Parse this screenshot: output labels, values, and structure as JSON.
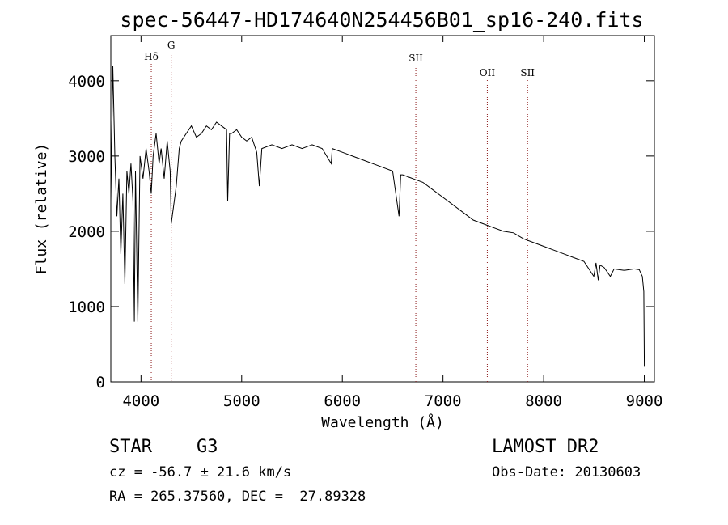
{
  "chart_data": {
    "type": "line",
    "title": "spec-56447-HD174640N254456B01_sp16-240.fits",
    "xlabel": "Wavelength (Å)",
    "ylabel": "Flux (relative)",
    "xlim": [
      3700,
      9100
    ],
    "ylim": [
      0,
      4600
    ],
    "xticks": [
      4000,
      5000,
      6000,
      7000,
      8000,
      9000
    ],
    "yticks": [
      0,
      1000,
      2000,
      3000,
      4000
    ],
    "line_color": "#000000",
    "marker_color": "#8b1a1a",
    "spectral_lines": [
      {
        "name": "Hδ",
        "wavelength": 4102
      },
      {
        "name": "G",
        "wavelength": 4300
      },
      {
        "name": "SII",
        "wavelength": 6730
      },
      {
        "name": "OII",
        "wavelength": 7440
      },
      {
        "name": "SII",
        "wavelength": 7840
      }
    ],
    "series": [
      {
        "values": [
          [
            3700,
            2400
          ],
          [
            3720,
            4200
          ],
          [
            3740,
            3000
          ],
          [
            3760,
            2200
          ],
          [
            3780,
            2700
          ],
          [
            3800,
            1700
          ],
          [
            3820,
            2500
          ],
          [
            3840,
            1300
          ],
          [
            3860,
            2800
          ],
          [
            3880,
            2500
          ],
          [
            3900,
            2900
          ],
          [
            3920,
            2400
          ],
          [
            3934,
            800
          ],
          [
            3945,
            2800
          ],
          [
            3968,
            800
          ],
          [
            3990,
            3000
          ],
          [
            4020,
            2700
          ],
          [
            4050,
            3100
          ],
          [
            4080,
            2800
          ],
          [
            4102,
            2500
          ],
          [
            4120,
            3000
          ],
          [
            4150,
            3300
          ],
          [
            4180,
            2900
          ],
          [
            4200,
            3100
          ],
          [
            4230,
            2700
          ],
          [
            4260,
            3200
          ],
          [
            4290,
            2800
          ],
          [
            4300,
            2100
          ],
          [
            4320,
            2300
          ],
          [
            4350,
            2600
          ],
          [
            4380,
            3100
          ],
          [
            4400,
            3200
          ],
          [
            4450,
            3300
          ],
          [
            4500,
            3400
          ],
          [
            4550,
            3250
          ],
          [
            4600,
            3300
          ],
          [
            4650,
            3400
          ],
          [
            4700,
            3350
          ],
          [
            4750,
            3450
          ],
          [
            4800,
            3400
          ],
          [
            4850,
            3350
          ],
          [
            4861,
            2400
          ],
          [
            4880,
            3300
          ],
          [
            4900,
            3300
          ],
          [
            4950,
            3350
          ],
          [
            5000,
            3250
          ],
          [
            5050,
            3200
          ],
          [
            5100,
            3250
          ],
          [
            5150,
            3050
          ],
          [
            5175,
            2600
          ],
          [
            5200,
            3100
          ],
          [
            5300,
            3150
          ],
          [
            5400,
            3100
          ],
          [
            5500,
            3150
          ],
          [
            5600,
            3100
          ],
          [
            5700,
            3150
          ],
          [
            5800,
            3100
          ],
          [
            5890,
            2900
          ],
          [
            5900,
            3100
          ],
          [
            6000,
            3050
          ],
          [
            6100,
            3000
          ],
          [
            6200,
            2950
          ],
          [
            6300,
            2900
          ],
          [
            6400,
            2850
          ],
          [
            6500,
            2800
          ],
          [
            6563,
            2200
          ],
          [
            6580,
            2750
          ],
          [
            6600,
            2750
          ],
          [
            6700,
            2700
          ],
          [
            6800,
            2650
          ],
          [
            6900,
            2550
          ],
          [
            7000,
            2450
          ],
          [
            7100,
            2350
          ],
          [
            7200,
            2250
          ],
          [
            7300,
            2150
          ],
          [
            7400,
            2100
          ],
          [
            7500,
            2050
          ],
          [
            7600,
            2000
          ],
          [
            7700,
            1980
          ],
          [
            7800,
            1900
          ],
          [
            7900,
            1850
          ],
          [
            8000,
            1800
          ],
          [
            8100,
            1750
          ],
          [
            8200,
            1700
          ],
          [
            8300,
            1650
          ],
          [
            8400,
            1600
          ],
          [
            8498,
            1400
          ],
          [
            8520,
            1580
          ],
          [
            8542,
            1350
          ],
          [
            8560,
            1550
          ],
          [
            8600,
            1520
          ],
          [
            8662,
            1400
          ],
          [
            8700,
            1500
          ],
          [
            8800,
            1480
          ],
          [
            8900,
            1500
          ],
          [
            8950,
            1490
          ],
          [
            8980,
            1400
          ],
          [
            8995,
            1200
          ],
          [
            9000,
            200
          ]
        ]
      }
    ]
  },
  "info": {
    "object_class": "STAR",
    "subclass": "G3",
    "survey": "LAMOST DR2",
    "redshift": "cz = -56.7 ± 21.6 km/s",
    "obs_date": "Obs-Date: 20130603",
    "coords": "RA = 265.37560, DEC =  27.89328"
  }
}
